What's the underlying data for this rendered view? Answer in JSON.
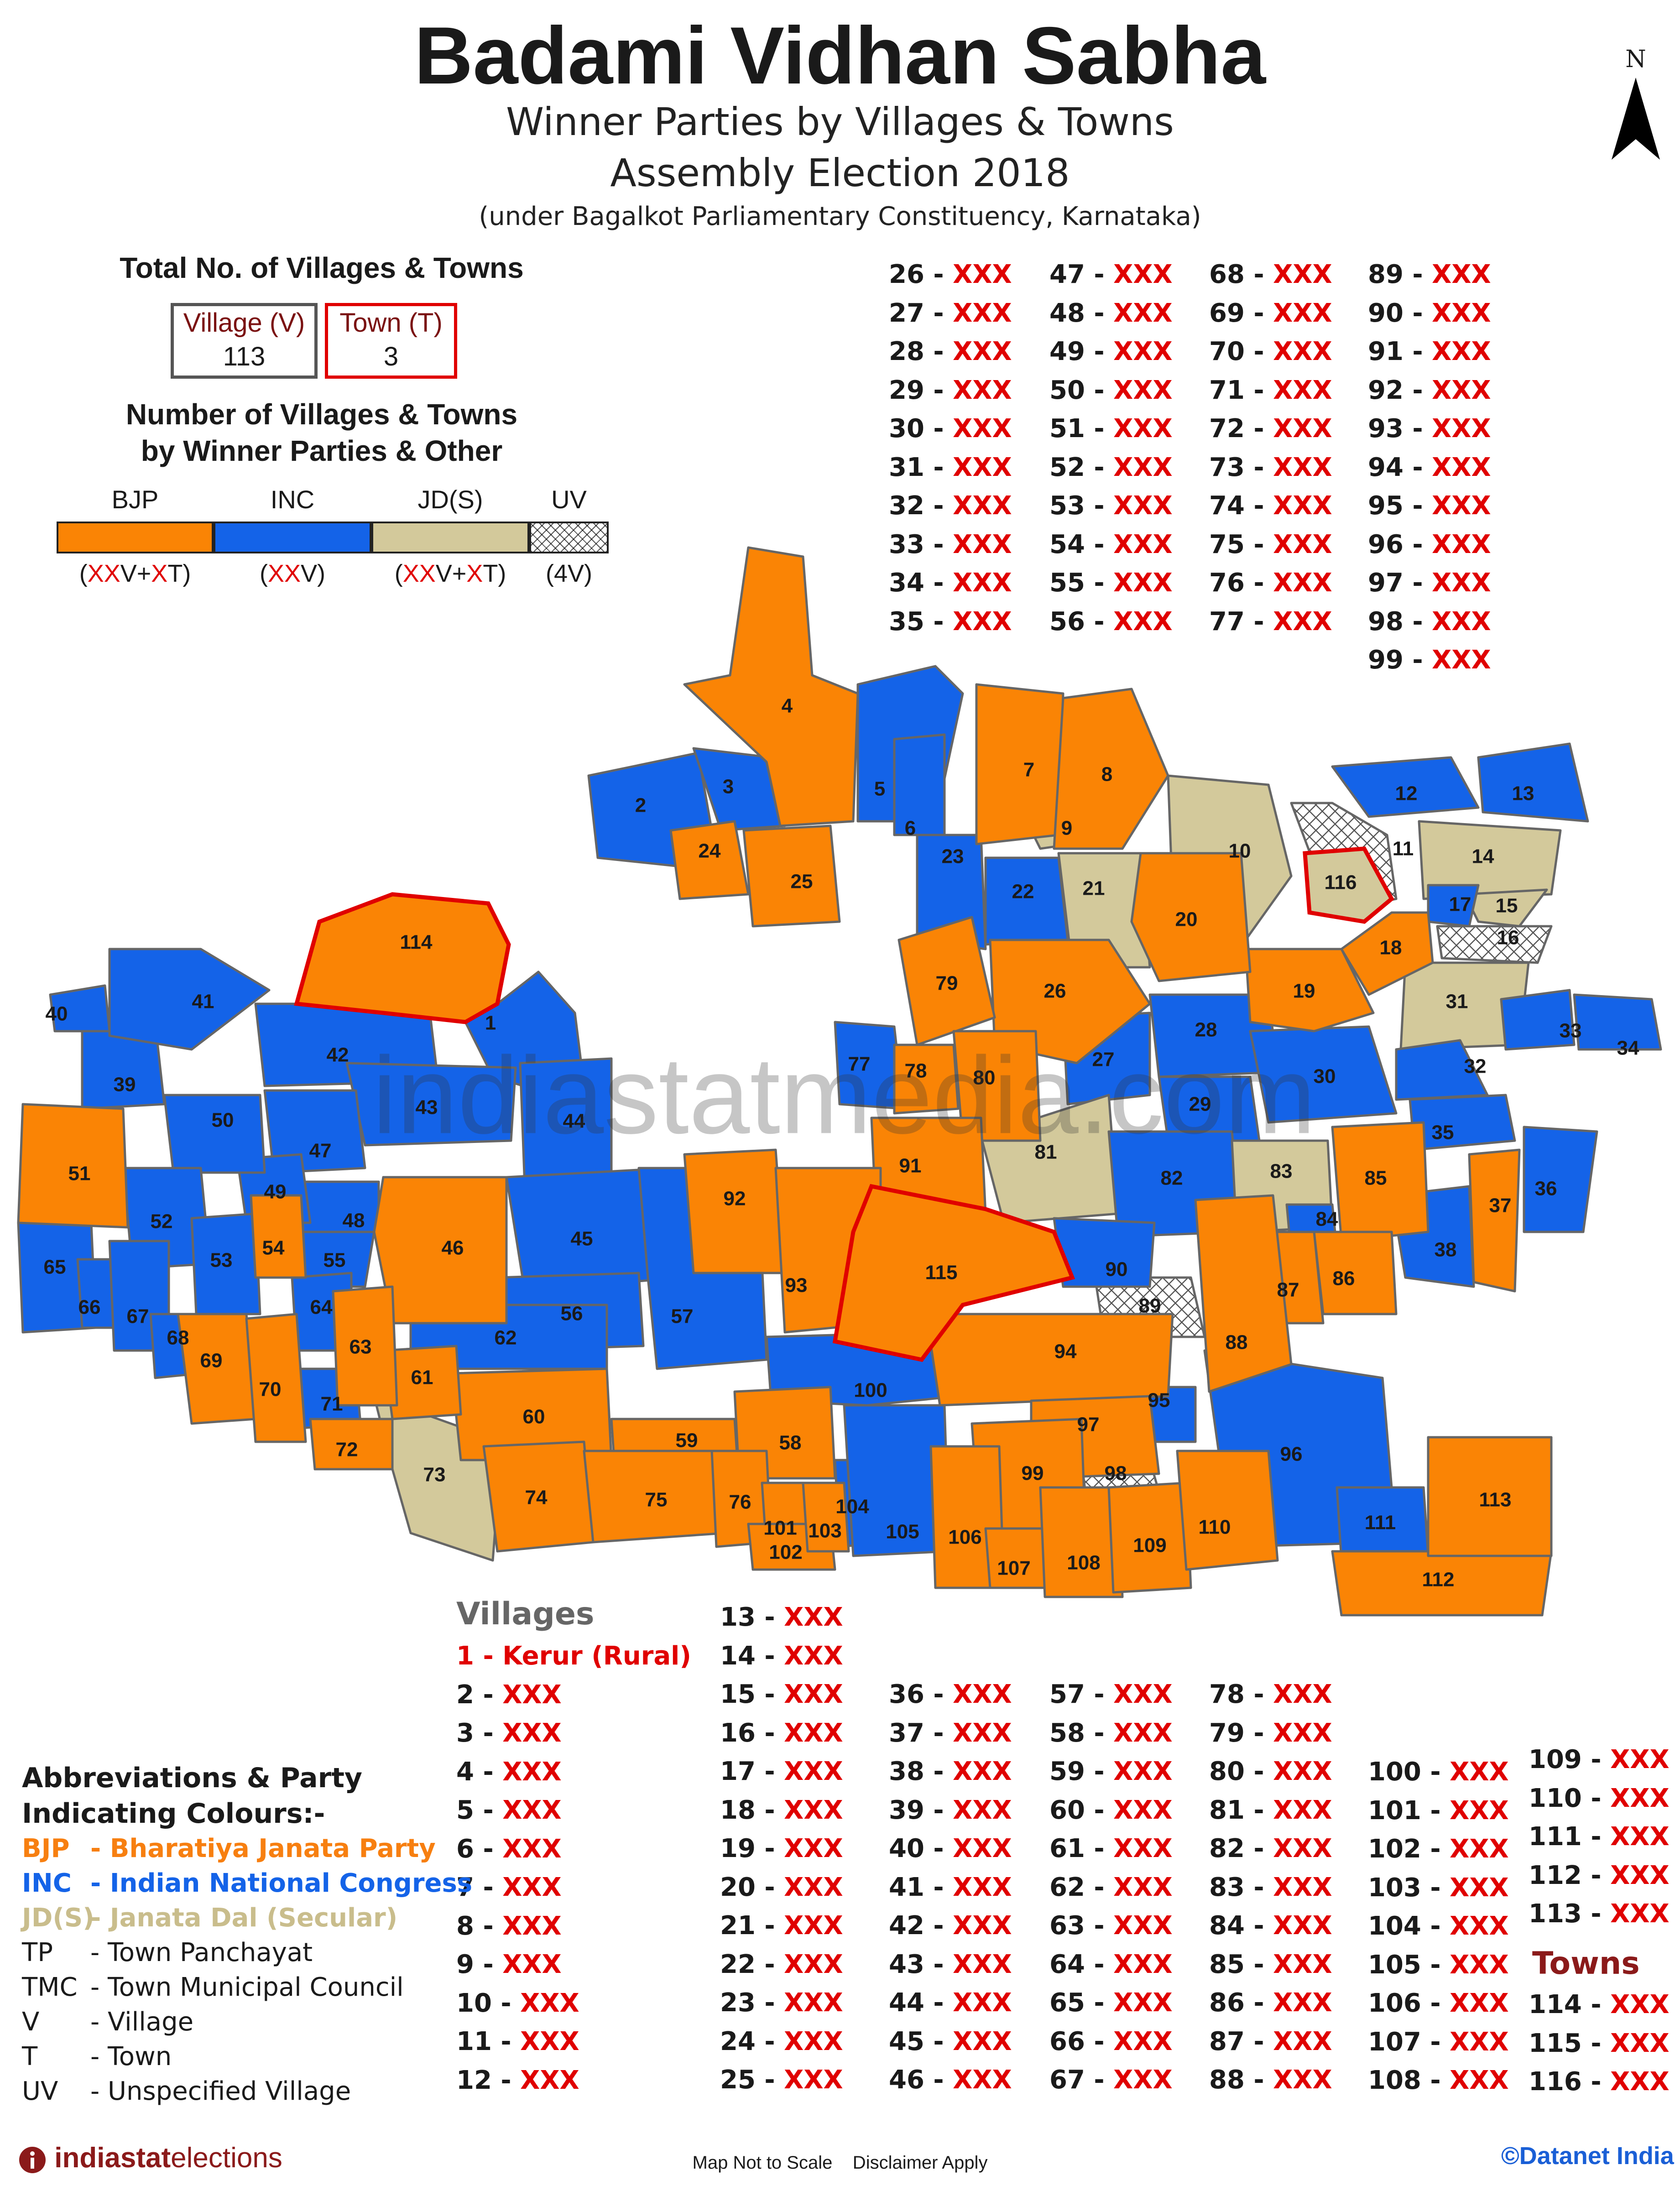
{
  "title": "Badami Vidhan Sabha",
  "subtitle1": "Winner Parties by Villages & Towns",
  "subtitle2": "Assembly Election 2018",
  "subtitle3": "(under Bagalkot Parliamentary Constituency, Karnataka)",
  "north_label": "N",
  "totals": {
    "heading": "Total No. of Villages & Towns",
    "village_label": "Village (V)",
    "village_count": "113",
    "town_label": "Town (T)",
    "town_count": "3"
  },
  "party_summary": {
    "heading_line1": "Number of Villages & Towns",
    "heading_line2": "by Winner Parties & Other",
    "parties": [
      {
        "label": "BJP",
        "color": "#fa8405",
        "count_pre": "(",
        "count_x1": "XX",
        "count_mid": "V+",
        "count_x2": "X",
        "count_post": "T)"
      },
      {
        "label": "INC",
        "color": "#1463e8",
        "count_pre": "(",
        "count_x1": "XX",
        "count_mid": "V",
        "count_x2": "",
        "count_post": ")"
      },
      {
        "label": "JD(S)",
        "color": "#d3c99b",
        "count_pre": "(",
        "count_x1": "XX",
        "count_mid": "V+",
        "count_x2": "X",
        "count_post": "T)"
      },
      {
        "label": "UV",
        "color": "#ffffff",
        "count_pre": "",
        "count_x1": "",
        "count_mid": "(4V)",
        "count_x2": "",
        "count_post": ""
      }
    ]
  },
  "map_regions": [
    {
      "id": "1",
      "party": "INC"
    },
    {
      "id": "2",
      "party": "INC"
    },
    {
      "id": "3",
      "party": "INC"
    },
    {
      "id": "4",
      "party": "BJP"
    },
    {
      "id": "5",
      "party": "INC"
    },
    {
      "id": "6",
      "party": "INC"
    },
    {
      "id": "7",
      "party": "BJP"
    },
    {
      "id": "8",
      "party": "BJP"
    },
    {
      "id": "9",
      "party": "JD(S)"
    },
    {
      "id": "10",
      "party": "JD(S)"
    },
    {
      "id": "11",
      "party": "UV"
    },
    {
      "id": "12",
      "party": "INC"
    },
    {
      "id": "13",
      "party": "INC"
    },
    {
      "id": "14",
      "party": "JD(S)"
    },
    {
      "id": "15",
      "party": "JD(S)"
    },
    {
      "id": "16",
      "party": "UV"
    },
    {
      "id": "17",
      "party": "INC"
    },
    {
      "id": "18",
      "party": "BJP"
    },
    {
      "id": "19",
      "party": "BJP"
    },
    {
      "id": "20",
      "party": "BJP"
    },
    {
      "id": "21",
      "party": "JD(S)"
    },
    {
      "id": "22",
      "party": "INC"
    },
    {
      "id": "23",
      "party": "INC"
    },
    {
      "id": "24",
      "party": "BJP"
    },
    {
      "id": "25",
      "party": "BJP"
    },
    {
      "id": "26",
      "party": "BJP"
    },
    {
      "id": "27",
      "party": "INC"
    },
    {
      "id": "28",
      "party": "INC"
    },
    {
      "id": "29",
      "party": "INC"
    },
    {
      "id": "30",
      "party": "INC"
    },
    {
      "id": "31",
      "party": "JD(S)"
    },
    {
      "id": "32",
      "party": "INC"
    },
    {
      "id": "33",
      "party": "INC"
    },
    {
      "id": "34",
      "party": "INC"
    },
    {
      "id": "35",
      "party": "INC"
    },
    {
      "id": "36",
      "party": "INC"
    },
    {
      "id": "37",
      "party": "BJP"
    },
    {
      "id": "38",
      "party": "INC"
    },
    {
      "id": "39",
      "party": "INC"
    },
    {
      "id": "40",
      "party": "INC"
    },
    {
      "id": "41",
      "party": "INC"
    },
    {
      "id": "42",
      "party": "INC"
    },
    {
      "id": "43",
      "party": "INC"
    },
    {
      "id": "44",
      "party": "INC"
    },
    {
      "id": "45",
      "party": "INC"
    },
    {
      "id": "46",
      "party": "BJP"
    },
    {
      "id": "47",
      "party": "INC"
    },
    {
      "id": "48",
      "party": "INC"
    },
    {
      "id": "49",
      "party": "INC"
    },
    {
      "id": "50",
      "party": "INC"
    },
    {
      "id": "51",
      "party": "BJP"
    },
    {
      "id": "52",
      "party": "INC"
    },
    {
      "id": "53",
      "party": "INC"
    },
    {
      "id": "54",
      "party": "BJP"
    },
    {
      "id": "55",
      "party": "INC"
    },
    {
      "id": "56",
      "party": "INC"
    },
    {
      "id": "57",
      "party": "INC"
    },
    {
      "id": "58",
      "party": "BJP"
    },
    {
      "id": "59",
      "party": "BJP"
    },
    {
      "id": "60",
      "party": "BJP"
    },
    {
      "id": "61",
      "party": "BJP"
    },
    {
      "id": "62",
      "party": "INC"
    },
    {
      "id": "63",
      "party": "BJP"
    },
    {
      "id": "64",
      "party": "INC"
    },
    {
      "id": "65",
      "party": "INC"
    },
    {
      "id": "66",
      "party": "INC"
    },
    {
      "id": "67",
      "party": "INC"
    },
    {
      "id": "68",
      "party": "INC"
    },
    {
      "id": "69",
      "party": "BJP"
    },
    {
      "id": "70",
      "party": "BJP"
    },
    {
      "id": "71",
      "party": "INC"
    },
    {
      "id": "72",
      "party": "BJP"
    },
    {
      "id": "73",
      "party": "JD(S)"
    },
    {
      "id": "74",
      "party": "BJP"
    },
    {
      "id": "75",
      "party": "BJP"
    },
    {
      "id": "76",
      "party": "BJP"
    },
    {
      "id": "77",
      "party": "INC"
    },
    {
      "id": "78",
      "party": "BJP"
    },
    {
      "id": "79",
      "party": "BJP"
    },
    {
      "id": "80",
      "party": "BJP"
    },
    {
      "id": "81",
      "party": "JD(S)"
    },
    {
      "id": "82",
      "party": "INC"
    },
    {
      "id": "83",
      "party": "JD(S)"
    },
    {
      "id": "84",
      "party": "INC"
    },
    {
      "id": "85",
      "party": "BJP"
    },
    {
      "id": "86",
      "party": "BJP"
    },
    {
      "id": "87",
      "party": "BJP"
    },
    {
      "id": "88",
      "party": "BJP"
    },
    {
      "id": "89",
      "party": "UV"
    },
    {
      "id": "90",
      "party": "INC"
    },
    {
      "id": "91",
      "party": "BJP"
    },
    {
      "id": "92",
      "party": "BJP"
    },
    {
      "id": "93",
      "party": "BJP"
    },
    {
      "id": "94",
      "party": "BJP"
    },
    {
      "id": "95",
      "party": "INC"
    },
    {
      "id": "96",
      "party": "INC"
    },
    {
      "id": "97",
      "party": "BJP"
    },
    {
      "id": "98",
      "party": "UV"
    },
    {
      "id": "99",
      "party": "BJP"
    },
    {
      "id": "100",
      "party": "INC"
    },
    {
      "id": "101",
      "party": "BJP"
    },
    {
      "id": "102",
      "party": "BJP"
    },
    {
      "id": "103",
      "party": "BJP"
    },
    {
      "id": "104",
      "party": "INC"
    },
    {
      "id": "105",
      "party": "INC"
    },
    {
      "id": "106",
      "party": "BJP"
    },
    {
      "id": "107",
      "party": "BJP"
    },
    {
      "id": "108",
      "party": "BJP"
    },
    {
      "id": "109",
      "party": "BJP"
    },
    {
      "id": "110",
      "party": "BJP"
    },
    {
      "id": "111",
      "party": "INC"
    },
    {
      "id": "112",
      "party": "BJP"
    },
    {
      "id": "113",
      "party": "BJP"
    },
    {
      "id": "114",
      "party": "BJP"
    },
    {
      "id": "115",
      "party": "BJP"
    },
    {
      "id": "116",
      "party": "JD(S)"
    }
  ],
  "watermark": "indiastatmedia.com",
  "villages_heading": "Villages",
  "towns_heading": "Towns",
  "village_list_top": [
    {
      "k": "26",
      "v": "XXX"
    },
    {
      "k": "27",
      "v": "XXX"
    },
    {
      "k": "28",
      "v": "XXX"
    },
    {
      "k": "29",
      "v": "XXX"
    },
    {
      "k": "30",
      "v": "XXX"
    },
    {
      "k": "31",
      "v": "XXX"
    },
    {
      "k": "32",
      "v": "XXX"
    },
    {
      "k": "33",
      "v": "XXX"
    },
    {
      "k": "34",
      "v": "XXX"
    },
    {
      "k": "35",
      "v": "XXX"
    },
    {
      "k": "47",
      "v": "XXX"
    },
    {
      "k": "48",
      "v": "XXX"
    },
    {
      "k": "49",
      "v": "XXX"
    },
    {
      "k": "50",
      "v": "XXX"
    },
    {
      "k": "51",
      "v": "XXX"
    },
    {
      "k": "52",
      "v": "XXX"
    },
    {
      "k": "53",
      "v": "XXX"
    },
    {
      "k": "54",
      "v": "XXX"
    },
    {
      "k": "55",
      "v": "XXX"
    },
    {
      "k": "56",
      "v": "XXX"
    },
    {
      "k": "68",
      "v": "XXX"
    },
    {
      "k": "69",
      "v": "XXX"
    },
    {
      "k": "70",
      "v": "XXX"
    },
    {
      "k": "71",
      "v": "XXX"
    },
    {
      "k": "72",
      "v": "XXX"
    },
    {
      "k": "73",
      "v": "XXX"
    },
    {
      "k": "74",
      "v": "XXX"
    },
    {
      "k": "75",
      "v": "XXX"
    },
    {
      "k": "76",
      "v": "XXX"
    },
    {
      "k": "77",
      "v": "XXX"
    },
    {
      "k": "89",
      "v": "XXX"
    },
    {
      "k": "90",
      "v": "XXX"
    },
    {
      "k": "91",
      "v": "XXX"
    },
    {
      "k": "92",
      "v": "XXX"
    },
    {
      "k": "93",
      "v": "XXX"
    },
    {
      "k": "94",
      "v": "XXX"
    },
    {
      "k": "95",
      "v": "XXX"
    },
    {
      "k": "96",
      "v": "XXX"
    },
    {
      "k": "97",
      "v": "XXX"
    },
    {
      "k": "98",
      "v": "XXX"
    },
    {
      "k": "99",
      "v": "XXX"
    }
  ],
  "village_list_bottom": [
    {
      "k": "1",
      "v": "Kerur (Rural)"
    },
    {
      "k": "2",
      "v": "XXX"
    },
    {
      "k": "3",
      "v": "XXX"
    },
    {
      "k": "4",
      "v": "XXX"
    },
    {
      "k": "5",
      "v": "XXX"
    },
    {
      "k": "6",
      "v": "XXX"
    },
    {
      "k": "7",
      "v": "XXX"
    },
    {
      "k": "8",
      "v": "XXX"
    },
    {
      "k": "9",
      "v": "XXX"
    },
    {
      "k": "10",
      "v": "XXX"
    },
    {
      "k": "11",
      "v": "XXX"
    },
    {
      "k": "12",
      "v": "XXX"
    },
    {
      "k": "13",
      "v": "XXX"
    },
    {
      "k": "14",
      "v": "XXX"
    },
    {
      "k": "15",
      "v": "XXX"
    },
    {
      "k": "16",
      "v": "XXX"
    },
    {
      "k": "17",
      "v": "XXX"
    },
    {
      "k": "18",
      "v": "XXX"
    },
    {
      "k": "19",
      "v": "XXX"
    },
    {
      "k": "20",
      "v": "XXX"
    },
    {
      "k": "21",
      "v": "XXX"
    },
    {
      "k": "22",
      "v": "XXX"
    },
    {
      "k": "23",
      "v": "XXX"
    },
    {
      "k": "24",
      "v": "XXX"
    },
    {
      "k": "25",
      "v": "XXX"
    },
    {
      "k": "36",
      "v": "XXX"
    },
    {
      "k": "37",
      "v": "XXX"
    },
    {
      "k": "38",
      "v": "XXX"
    },
    {
      "k": "39",
      "v": "XXX"
    },
    {
      "k": "40",
      "v": "XXX"
    },
    {
      "k": "41",
      "v": "XXX"
    },
    {
      "k": "42",
      "v": "XXX"
    },
    {
      "k": "43",
      "v": "XXX"
    },
    {
      "k": "44",
      "v": "XXX"
    },
    {
      "k": "45",
      "v": "XXX"
    },
    {
      "k": "46",
      "v": "XXX"
    },
    {
      "k": "57",
      "v": "XXX"
    },
    {
      "k": "58",
      "v": "XXX"
    },
    {
      "k": "59",
      "v": "XXX"
    },
    {
      "k": "60",
      "v": "XXX"
    },
    {
      "k": "61",
      "v": "XXX"
    },
    {
      "k": "62",
      "v": "XXX"
    },
    {
      "k": "63",
      "v": "XXX"
    },
    {
      "k": "64",
      "v": "XXX"
    },
    {
      "k": "65",
      "v": "XXX"
    },
    {
      "k": "66",
      "v": "XXX"
    },
    {
      "k": "67",
      "v": "XXX"
    },
    {
      "k": "78",
      "v": "XXX"
    },
    {
      "k": "79",
      "v": "XXX"
    },
    {
      "k": "80",
      "v": "XXX"
    },
    {
      "k": "81",
      "v": "XXX"
    },
    {
      "k": "82",
      "v": "XXX"
    },
    {
      "k": "83",
      "v": "XXX"
    },
    {
      "k": "84",
      "v": "XXX"
    },
    {
      "k": "85",
      "v": "XXX"
    },
    {
      "k": "86",
      "v": "XXX"
    },
    {
      "k": "87",
      "v": "XXX"
    },
    {
      "k": "88",
      "v": "XXX"
    },
    {
      "k": "100",
      "v": "XXX"
    },
    {
      "k": "101",
      "v": "XXX"
    },
    {
      "k": "102",
      "v": "XXX"
    },
    {
      "k": "103",
      "v": "XXX"
    },
    {
      "k": "104",
      "v": "XXX"
    },
    {
      "k": "105",
      "v": "XXX"
    },
    {
      "k": "106",
      "v": "XXX"
    },
    {
      "k": "107",
      "v": "XXX"
    },
    {
      "k": "108",
      "v": "XXX"
    },
    {
      "k": "109",
      "v": "XXX"
    },
    {
      "k": "110",
      "v": "XXX"
    },
    {
      "k": "111",
      "v": "XXX"
    },
    {
      "k": "112",
      "v": "XXX"
    },
    {
      "k": "113",
      "v": "XXX"
    }
  ],
  "town_list": [
    {
      "k": "114",
      "v": "XXX"
    },
    {
      "k": "115",
      "v": "XXX"
    },
    {
      "k": "116",
      "v": "XXX"
    }
  ],
  "abbreviations": {
    "heading_line1": "Abbreviations & Party",
    "heading_line2": "Indicating Colours:-",
    "items": [
      {
        "abbr": "BJP",
        "desc": "- Bharatiya Janata Party",
        "color": "#f77f10"
      },
      {
        "abbr": "INC",
        "desc": "- Indian National Congress",
        "color": "#1463e8"
      },
      {
        "abbr": "JD(S)",
        "desc": "- Janata Dal (Secular)",
        "color": "#c9bd8c"
      },
      {
        "abbr": "TP",
        "desc": "- Town Panchayat",
        "color": "#1a1a1a"
      },
      {
        "abbr": "TMC",
        "desc": "- Town Municipal Council",
        "color": "#1a1a1a"
      },
      {
        "abbr": "V",
        "desc": "- Village",
        "color": "#1a1a1a"
      },
      {
        "abbr": "T",
        "desc": "- Town",
        "color": "#1a1a1a"
      },
      {
        "abbr": "UV",
        "desc": "- Unspecified Village",
        "color": "#1a1a1a"
      }
    ]
  },
  "footer": {
    "brand_a": "indiastat",
    "brand_b": "elections",
    "note": "Map Not to Scale    Disclaimer Apply",
    "copyright": "©Datanet India"
  },
  "colors": {
    "bjp": "#fa8405",
    "inc": "#1463e8",
    "jds": "#d3c99b",
    "uv": "#ffffff",
    "border": "#666666",
    "outline_inc": "#1463e8",
    "town_outline": "#e00000"
  }
}
